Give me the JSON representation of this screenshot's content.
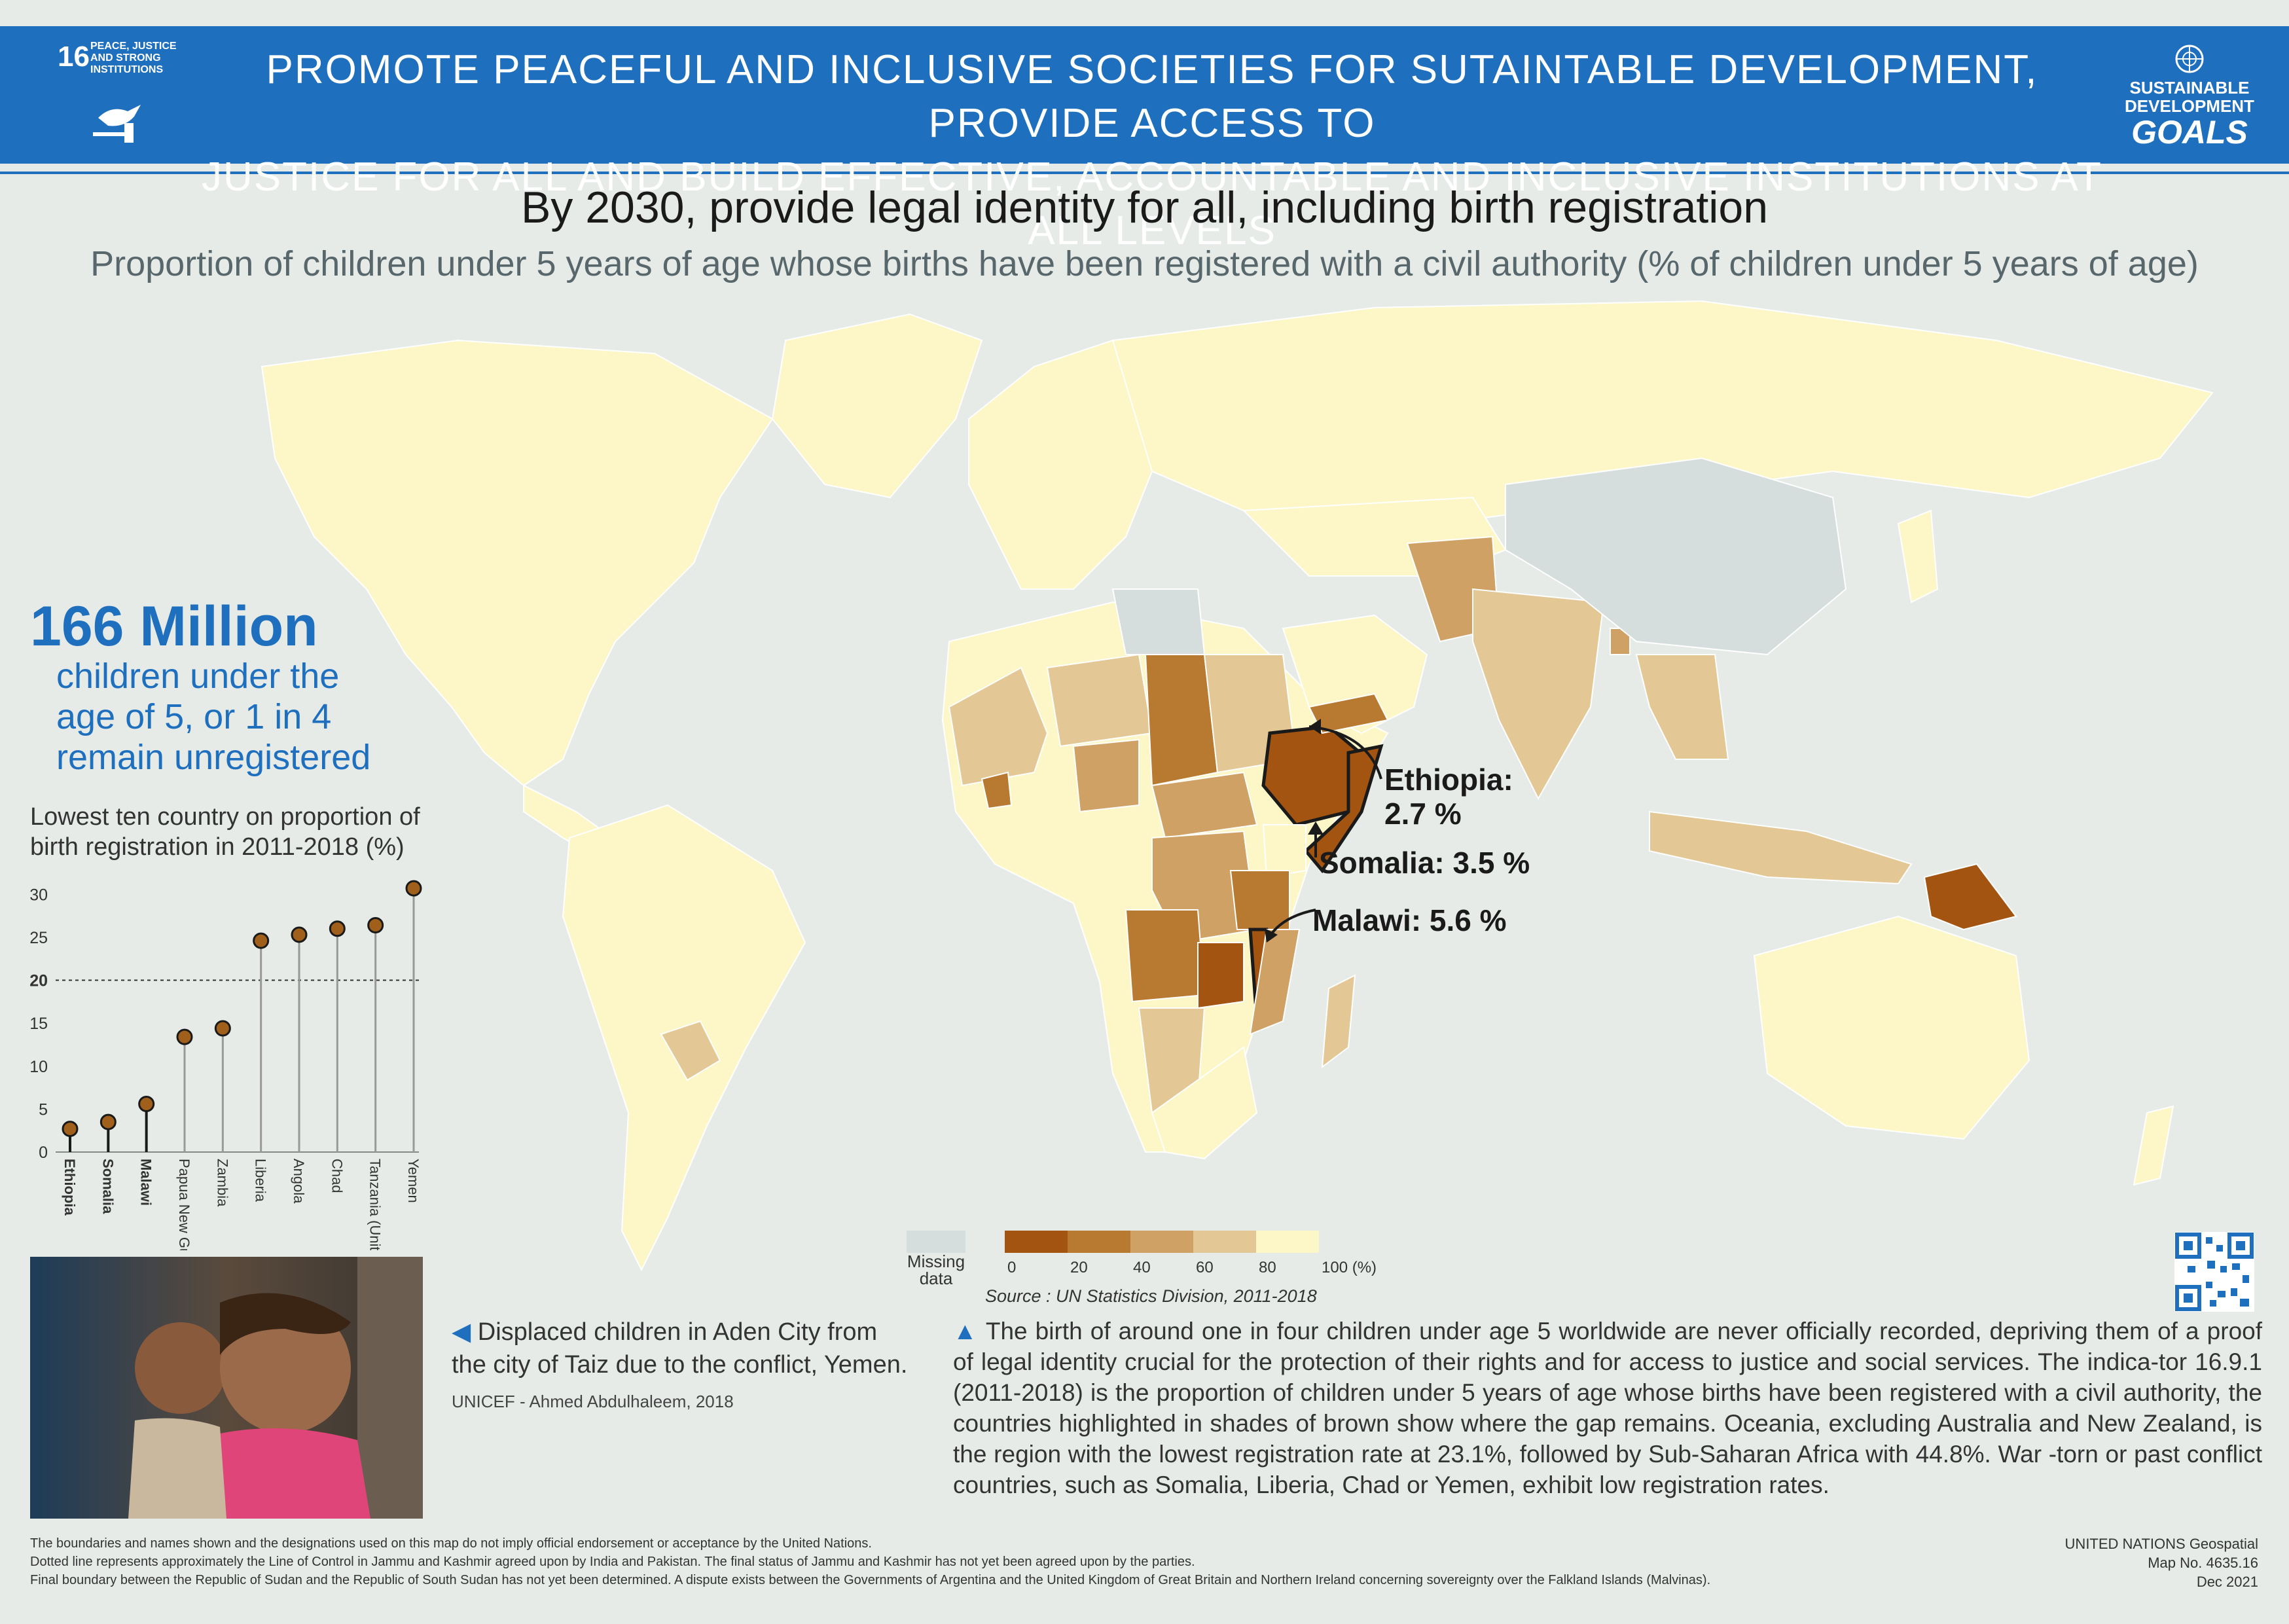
{
  "header": {
    "sdg_number": "16",
    "sdg_name": "PEACE, JUSTICE AND STRONG INSTITUTIONS",
    "title_line1": "PROMOTE PEACEFUL AND INCLUSIVE SOCIETIES FOR SUTAINTABLE DEVELOPMENT, PROVIDE ACCESS TO",
    "title_line2": "JUSTICE FOR ALL AND BUILD EFFECTIVE, ACCOUNTABLE AND INCLUSIVE INSTITUTIONS AT ALL LEVELS",
    "logo_line1": "SUSTAINABLE",
    "logo_line2": "DEVELOPMENT",
    "logo_line3": "GOALS",
    "brand_color": "#1f6fbf"
  },
  "heading": "By 2030, provide legal identity for all, including birth registration",
  "subheading": "Proportion of children under 5 years of age whose births have been registered with a civil authority (% of children under 5 years of age)",
  "stat": {
    "big": "166 Million",
    "line1": "children under the",
    "line2": "age of 5, or 1 in 4",
    "line3": "remain unregistered"
  },
  "map_labels": {
    "ethiopia_l1": "Ethiopia:",
    "ethiopia_l2": "2.7 %",
    "somalia": "Somalia: 3.5 %",
    "malawi": "Malawi: 5.6 %"
  },
  "legend": {
    "missing_l1": "Missing",
    "missing_l2": "data",
    "ticks": [
      "0",
      "20",
      "40",
      "60",
      "80",
      "100 (%)"
    ],
    "colors": [
      "#a35410",
      "#b87a30",
      "#cfa164",
      "#e3c895",
      "#fdf7c7"
    ],
    "missing_color": "#d5dedd",
    "source": "Source : UN Statistics Division, 2011-2018"
  },
  "chart_data": {
    "type": "scatter",
    "title": "Lowest ten country on proportion of birth registration in 2011-2018 (%)",
    "categories": [
      "Ethiopia",
      "Somalia",
      "Malawi",
      "Papua New Guinea",
      "Zambia",
      "Liberia",
      "Angola",
      "Chad",
      "Tanzania (United Rep. of)",
      "Yemen"
    ],
    "values": [
      2.7,
      3.5,
      5.6,
      13.4,
      14.4,
      24.6,
      25.3,
      26.0,
      26.4,
      30.7
    ],
    "highlighted": [
      "Ethiopia",
      "Somalia",
      "Malawi"
    ],
    "yticks": [
      "0",
      "5",
      "10",
      "15",
      "20",
      "25",
      "30"
    ],
    "ylim": [
      0,
      32
    ],
    "reference_line": 20,
    "marker_color": "#a0601c"
  },
  "photo": {
    "caption_l1": "Displaced children in Aden City from",
    "caption_l2": "the city of Taiz due to the conflict, Yemen.",
    "credit": "UNICEF - Ahmed Abdulhaleem, 2018"
  },
  "paragraph": "The birth of around one in four children under age 5 worldwide are never officially recorded, depriving them of a proof of legal identity crucial for the protection of their rights and for access to justice and social services. The indica-tor 16.9.1 (2011-2018) is the proportion of children under 5 years of age whose births have been registered with a civil authority, the countries highlighted in shades of brown show where the gap remains. Oceania, excluding Australia and New Zealand, is the region with the lowest registration rate at 23.1%, followed by Sub-Saharan Africa with 44.8%. War -torn or past conflict countries, such as Somalia, Liberia, Chad or Yemen, exhibit low registration rates.",
  "footer": {
    "line1": "The boundaries and names shown and the designations used on this map do not imply official endorsement or acceptance by the United Nations.",
    "line2": "Dotted line represents approximately the Line of Control in Jammu and Kashmir agreed upon by India and Pakistan. The final status of Jammu and Kashmir has not yet been agreed upon by the parties.",
    "line3": "Final boundary between the Republic of Sudan and the Republic of South Sudan has not yet been determined. A dispute exists between the Governments of Argentina and the United Kingdom of Great Britain and Northern Ireland concerning sovereignty over the Falkland Islands (Malvinas).",
    "right1": "UNITED NATIONS Geospatial",
    "right2": "Map No. 4635.16",
    "right3": "Dec 2021"
  }
}
